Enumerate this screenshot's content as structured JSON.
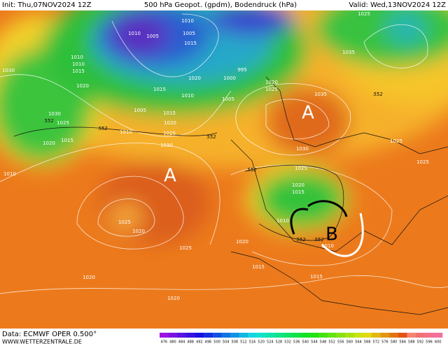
{
  "header": {
    "init": "Init: Thu,07NOV2024 12Z",
    "title": "500 hPa Geopot. (gpdm), Bodendruck (hPa)",
    "valid": "Valid: Wed,13NOV2024 12Z"
  },
  "map": {
    "isobar_labels": [
      1010,
      1005,
      1010,
      1005,
      1015,
      1010,
      1010,
      1015,
      1030,
      1020,
      1000,
      995,
      1020,
      1015,
      1010,
      1005,
      1005,
      1030,
      1025,
      1010,
      1015,
      1020,
      1025,
      1030,
      1015,
      1020,
      1010,
      1020,
      1025,
      1035,
      1030,
      1025,
      1020,
      1015,
      1010,
      1025,
      1025,
      1035,
      1025,
      1025,
      1020,
      1025,
      1020,
      1015,
      1020,
      1020,
      1015,
      1010
    ],
    "contour_labels": [
      552,
      552,
      552,
      552,
      552,
      552,
      552
    ],
    "highs": [
      "A",
      "A"
    ],
    "lows": [
      "B"
    ]
  },
  "footer": {
    "source": "Data: ECMWF OPER 0.500°",
    "url": "WWW.WETTERZENTRALE.DE"
  },
  "colorbar": {
    "labels": [
      476,
      480,
      484,
      488,
      492,
      496,
      500,
      504,
      508,
      512,
      516,
      520,
      524,
      528,
      532,
      536,
      540,
      544,
      548,
      552,
      556,
      560,
      564,
      568,
      572,
      576,
      580,
      584,
      588,
      592,
      596,
      600
    ]
  }
}
